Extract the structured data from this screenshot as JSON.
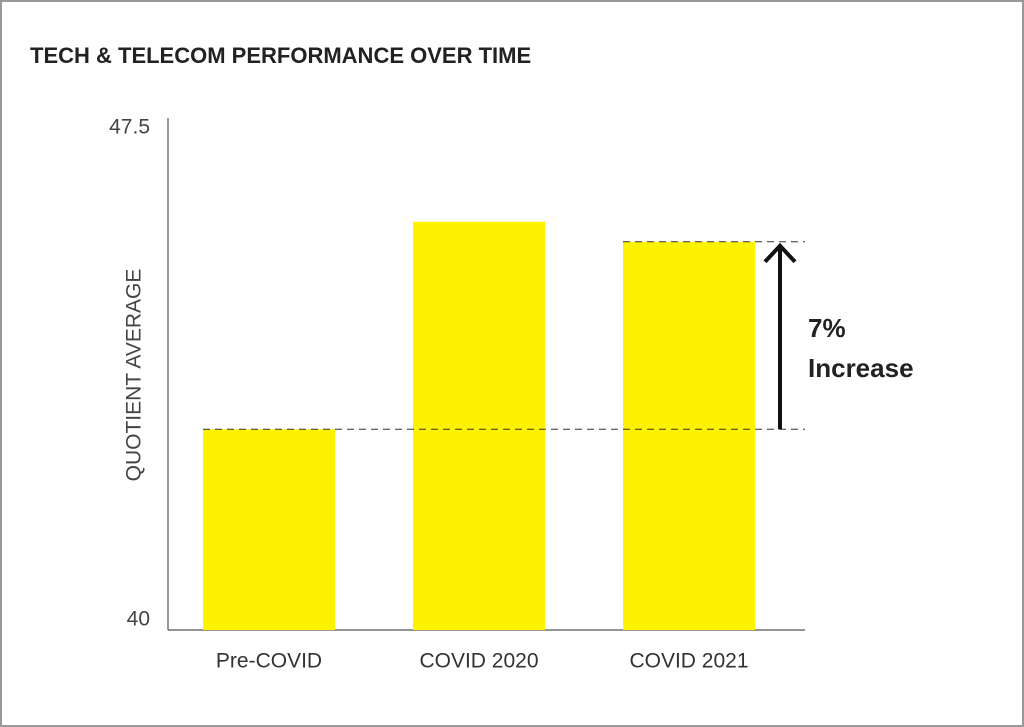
{
  "chart_data": {
    "type": "bar",
    "title": "TECH & TELECOM PERFORMANCE OVER TIME",
    "y_label": "QUOTIENT AVERAGE",
    "categories": [
      "Pre-COVID",
      "COVID 2020",
      "COVID 2021"
    ],
    "values": [
      43.0,
      46.1,
      45.8
    ],
    "color": "#fff200",
    "ylim": [
      40,
      47.5
    ],
    "yticks": [
      40,
      47.5
    ],
    "grid": false,
    "annotation": [
      "7%",
      "Increase"
    ]
  }
}
